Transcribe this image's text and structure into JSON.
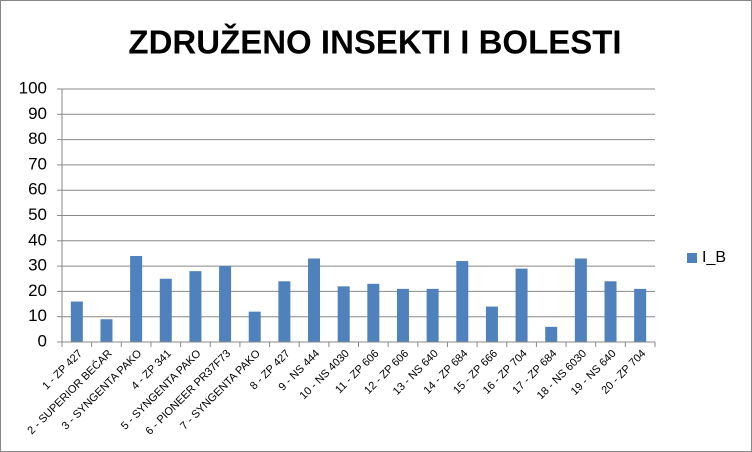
{
  "chart_data": {
    "type": "bar",
    "title": "ZDRUŽENO INSEKTI I BOLESTI",
    "categories": [
      "1 - ZP 427",
      "2 - SUPERIOR BEĆAR",
      "3 - SYNGENTA PAKO",
      "4 - ZP 341",
      "5 - SYNGENTA PAKO",
      "6 - PIONEER PR37F73",
      "7 - SYNGENTA PAKO",
      "8 - ZP 427",
      "9 - NS 444",
      "10 - NS 4030",
      "11 - ZP 606",
      "12 - ZP 606",
      "13 - NS 640",
      "14 - ZP 684",
      "15 - ZP 666",
      "16 - ZP 704",
      "17 - ZP 684",
      "18 - NS 6030",
      "19 - NS 640",
      "20 - ZP 704"
    ],
    "series": [
      {
        "name": "I_B",
        "color": "#4f81bd",
        "values": [
          16,
          9,
          34,
          25,
          28,
          30,
          12,
          24,
          33,
          22,
          23,
          21,
          21,
          32,
          14,
          29,
          6,
          33,
          24,
          21
        ]
      }
    ],
    "ylim": [
      0,
      100
    ],
    "yticks": [
      0,
      10,
      20,
      30,
      40,
      50,
      60,
      70,
      80,
      90,
      100
    ],
    "grid": true,
    "legend": "right"
  }
}
